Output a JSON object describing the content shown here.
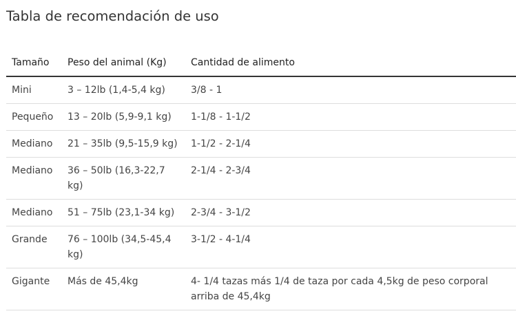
{
  "title": "Tabla de recomendación de uso",
  "table": {
    "headers": [
      "Tamaño",
      "Peso del animal (Kg)",
      "Cantidad de alimento"
    ],
    "rows": [
      [
        "Mini",
        "3 – 12lb (1,4-5,4 kg)",
        "3/8 - 1"
      ],
      [
        "Pequeño",
        "13 – 20lb (5,9-9,1 kg)",
        "1-1/8 - 1-1/2"
      ],
      [
        "Mediano",
        "21 – 35lb (9,5-15,9 kg)",
        "1-1/2 - 2-1/4"
      ],
      [
        "Mediano",
        "36 – 50lb (16,3-22,7 kg)",
        "2-1/4 - 2-3/4"
      ],
      [
        "Mediano",
        "51 – 75lb (23,1-34 kg)",
        "2-3/4 - 3-1/2"
      ],
      [
        "Grande",
        "76 – 100lb (34,5-45,4 kg)",
        "3-1/2 - 4-1/4"
      ],
      [
        "Gigante",
        "Más de 45,4kg",
        "4- 1/4 tazas más 1/4 de taza por cada 4,5kg de peso corporal arriba de 45,4kg"
      ]
    ]
  }
}
